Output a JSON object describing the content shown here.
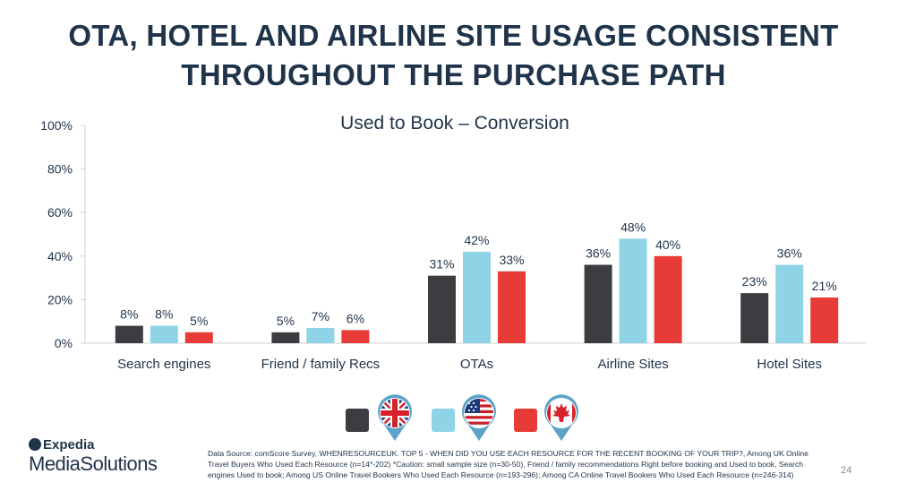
{
  "title_lines": [
    "OTA, HOTEL AND AIRLINE SITE USAGE CONSISTENT",
    "THROUGHOUT THE PURCHASE PATH"
  ],
  "chart_data": {
    "type": "bar",
    "title": "Used to Book – Conversion",
    "categories": [
      "Search engines",
      "Friend / family Recs",
      "OTAs",
      "Airline Sites",
      "Hotel Sites"
    ],
    "series": [
      {
        "values": [
          8,
          5,
          31,
          36,
          23
        ],
        "color": "#3b3d40"
      },
      {
        "values": [
          8,
          7,
          42,
          48,
          36
        ],
        "color": "#8ed3e6"
      },
      {
        "values": [
          5,
          6,
          33,
          40,
          21
        ],
        "color": "#e63b36"
      }
    ],
    "value_suffix": "%",
    "ylim": [
      0,
      100
    ],
    "yticks": [
      0,
      20,
      40,
      60,
      80,
      100
    ],
    "ytick_labels": [
      "0%",
      "20%",
      "40%",
      "60%",
      "80%",
      "100%"
    ],
    "xlabel": "",
    "ylabel": "",
    "legend_position": "bottom-center"
  },
  "legend": [
    {
      "flag": "uk-flag-icon",
      "color": "#3b3d40"
    },
    {
      "flag": "us-flag-icon",
      "color": "#8ed3e6"
    },
    {
      "flag": "canada-flag-icon",
      "color": "#e63b36"
    }
  ],
  "logo": {
    "top": "Expedia",
    "bottom": "MediaSolutions"
  },
  "source": "Data Source: comScore Survey, WHENRESOURCEUK. TOP 5 - WHEN DID YOU USE EACH RESOURCE FOR THE RECENT BOOKING OF YOUR TRIP?, Among UK Online Travel Buyers Who Used Each Resource (n=14*-202) *Caution: small sample size (n=30-50), Friend / family recommendations Right before booking and Used to book, Search engines Used to book; Among US Online Travel Bookers Who Used Each Resource (n=193-296); Among CA Online Travel Bookers Who Used Each Resource (n=246-314)",
  "page_number": "24"
}
